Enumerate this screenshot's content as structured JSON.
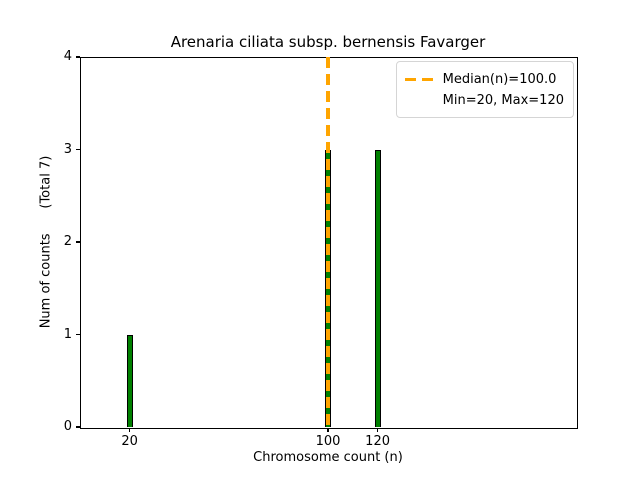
{
  "chart_data": {
    "type": "bar",
    "title": "Arenaria ciliata subsp. bernensis Favarger",
    "xlabel": "Chromosome count (n)",
    "ylabel": "Num of counts      (Total 7)",
    "total_counts": 7,
    "categories": [
      20,
      100,
      120
    ],
    "values": [
      1,
      3,
      3
    ],
    "xlim": [
      0,
      200
    ],
    "ylim": [
      0,
      4
    ],
    "xticks": [
      20,
      100,
      120
    ],
    "yticks": [
      0,
      1,
      2,
      3,
      4
    ],
    "grid": false,
    "bar_color": "#008000",
    "bar_edge_color": "#000000",
    "median_line": {
      "x": 100,
      "value_label": "Median(n)=100.0",
      "color": "#FFA500",
      "style": "dashed"
    },
    "legend": {
      "position": "upper right",
      "line1": "Median(n)=100.0",
      "line2": "Min=20, Max=120"
    }
  }
}
